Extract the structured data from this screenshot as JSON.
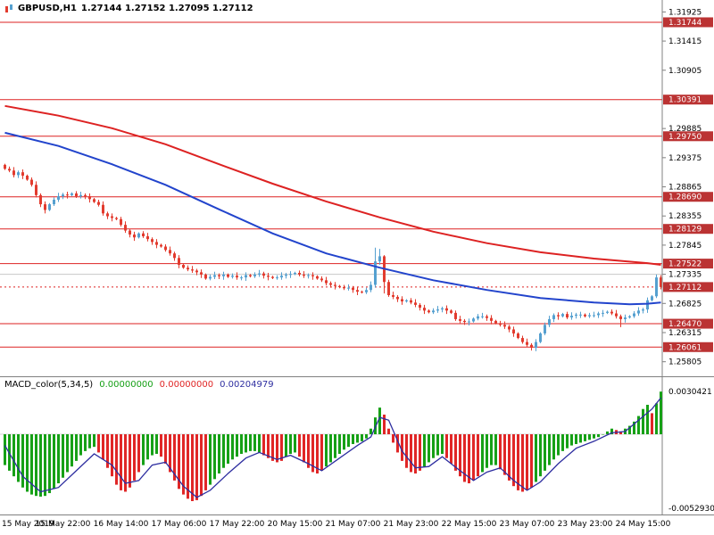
{
  "header": {
    "symbol": "GBPUSD,H1",
    "ohlc": "1.27144 1.27152 1.27095 1.27112",
    "icon": "candlestick-icon"
  },
  "macd_header": {
    "label": "MACD_color(5,34,5)",
    "values": [
      "0.00000000",
      "0.00000000",
      "0.00204979"
    ]
  },
  "colors": {
    "candle_up": "#55a0d0",
    "candle_down": "#e23b2e",
    "ma_slow": "#dd2222",
    "ma_fast": "#2244cc",
    "level_line": "#dd2222",
    "level_box": "#bb3333",
    "hist_up": "#16a016",
    "hist_down": "#e02626",
    "signal": "#2e2ea0",
    "grid": "#c8c8c8",
    "frame": "#808080"
  },
  "chart_data": [
    {
      "type": "candlestick",
      "title": "GBPUSD,H1",
      "symbol": "GBPUSD",
      "timeframe": "H1",
      "current_price": 1.27112,
      "ylim": [
        1.255,
        1.3204
      ],
      "x_labels": [
        "15 May 2019",
        "15 May 22:00",
        "16 May 14:00",
        "17 May 06:00",
        "17 May 22:00",
        "20 May 15:00",
        "21 May 07:00",
        "21 May 23:00",
        "22 May 15:00",
        "23 May 07:00",
        "23 May 23:00",
        "24 May 15:00"
      ],
      "x_label_indices": [
        0,
        13,
        26,
        39,
        52,
        65,
        78,
        91,
        104,
        117,
        130,
        143
      ],
      "y_axis_ticks": [
        1.31925,
        1.31415,
        1.30905,
        1.29885,
        1.29375,
        1.28865,
        1.28355,
        1.27845,
        1.27335,
        1.26825,
        1.26315,
        1.25805
      ],
      "levels": [
        1.31744,
        1.30391,
        1.2975,
        1.2869,
        1.28129,
        1.27522,
        1.2647,
        1.26061
      ],
      "gray_line": 1.27335,
      "first_open": 1.2925,
      "candles_close": [
        1.2918,
        1.2915,
        1.2907,
        1.2912,
        1.2906,
        1.2899,
        1.289,
        1.2872,
        1.2856,
        1.2846,
        1.2856,
        1.2864,
        1.287,
        1.2873,
        1.2872,
        1.2875,
        1.287,
        1.2872,
        1.287,
        1.2865,
        1.286,
        1.2855,
        1.284,
        1.2835,
        1.2832,
        1.283,
        1.282,
        1.281,
        1.2803,
        1.2798,
        1.2805,
        1.28,
        1.2795,
        1.279,
        1.2785,
        1.2782,
        1.2776,
        1.277,
        1.2762,
        1.275,
        1.2745,
        1.2742,
        1.274,
        1.2737,
        1.2733,
        1.2726,
        1.2729,
        1.2732,
        1.273,
        1.2733,
        1.2729,
        1.2731,
        1.2728,
        1.2728,
        1.2732,
        1.273,
        1.2733,
        1.2735,
        1.2731,
        1.2729,
        1.2727,
        1.2728,
        1.2731,
        1.2733,
        1.2734,
        1.2736,
        1.2733,
        1.2731,
        1.2732,
        1.273,
        1.2726,
        1.2723,
        1.2718,
        1.2715,
        1.2713,
        1.2711,
        1.2709,
        1.271,
        1.2706,
        1.2703,
        1.2702,
        1.2706,
        1.2715,
        1.2756,
        1.2765,
        1.272,
        1.2697,
        1.2694,
        1.269,
        1.2686,
        1.2688,
        1.2684,
        1.268,
        1.2675,
        1.267,
        1.2667,
        1.267,
        1.2672,
        1.2674,
        1.267,
        1.2666,
        1.2655,
        1.2652,
        1.265,
        1.2651,
        1.2656,
        1.266,
        1.266,
        1.2657,
        1.2652,
        1.2648,
        1.2645,
        1.2642,
        1.2637,
        1.263,
        1.2622,
        1.2615,
        1.261,
        1.2605,
        1.2615,
        1.263,
        1.2645,
        1.2655,
        1.2662,
        1.266,
        1.2664,
        1.2658,
        1.2661,
        1.2663,
        1.2663,
        1.266,
        1.2662,
        1.2662,
        1.2665,
        1.2666,
        1.2668,
        1.2665,
        1.266,
        1.2655,
        1.2658,
        1.266,
        1.2665,
        1.267,
        1.2672,
        1.2688,
        1.2695,
        1.2728,
        1.27112
      ],
      "wick_overrides": {
        "83": {
          "h": 1.278
        },
        "84": {
          "h": 1.2778
        },
        "85": {
          "l": 1.27
        },
        "118": {
          "l": 1.26
        },
        "138": {
          "l": 1.2641
        },
        "146": {
          "h": 1.2733
        },
        "147": {
          "h": 1.2732
        }
      },
      "ma_slow": [
        [
          0,
          1.3028
        ],
        [
          12,
          1.3011
        ],
        [
          24,
          1.2989
        ],
        [
          36,
          1.2961
        ],
        [
          48,
          1.2926
        ],
        [
          60,
          1.2892
        ],
        [
          72,
          1.2861
        ],
        [
          84,
          1.2833
        ],
        [
          96,
          1.2808
        ],
        [
          108,
          1.2788
        ],
        [
          120,
          1.2772
        ],
        [
          132,
          1.2761
        ],
        [
          144,
          1.2753
        ],
        [
          147,
          1.275
        ]
      ],
      "ma_fast": [
        [
          0,
          1.2981
        ],
        [
          12,
          1.2958
        ],
        [
          24,
          1.2926
        ],
        [
          36,
          1.289
        ],
        [
          48,
          1.2847
        ],
        [
          60,
          1.2805
        ],
        [
          72,
          1.277
        ],
        [
          84,
          1.2745
        ],
        [
          96,
          1.2723
        ],
        [
          108,
          1.2706
        ],
        [
          120,
          1.2692
        ],
        [
          132,
          1.2684
        ],
        [
          140,
          1.2681
        ],
        [
          144,
          1.2682
        ],
        [
          147,
          1.2684
        ]
      ]
    },
    {
      "type": "bar",
      "title": "MACD_color(5,34,5)",
      "ylim": [
        -0.005293,
        0.0030421
      ],
      "axis_labels": [
        "0.0030421",
        "-0.0052930"
      ],
      "histogram": [
        -0.0022,
        -0.0026,
        -0.003,
        -0.0034,
        -0.0038,
        -0.0041,
        -0.0043,
        -0.0044,
        -0.00445,
        -0.0044,
        -0.0042,
        -0.0039,
        -0.0035,
        -0.0031,
        -0.0027,
        -0.0023,
        -0.0019,
        -0.0015,
        -0.0012,
        -0.001,
        -0.0009,
        -0.0013,
        -0.0018,
        -0.0024,
        -0.003,
        -0.0036,
        -0.004,
        -0.0041,
        -0.0038,
        -0.0033,
        -0.0027,
        -0.0022,
        -0.0018,
        -0.0015,
        -0.0014,
        -0.0016,
        -0.0021,
        -0.0027,
        -0.0033,
        -0.0039,
        -0.0043,
        -0.0046,
        -0.00477,
        -0.0047,
        -0.0044,
        -0.004,
        -0.0036,
        -0.0032,
        -0.0028,
        -0.0024,
        -0.0021,
        -0.0018,
        -0.0016,
        -0.0014,
        -0.0013,
        -0.0012,
        -0.0012,
        -0.0013,
        -0.0015,
        -0.0017,
        -0.0019,
        -0.002,
        -0.0019,
        -0.0016,
        -0.0014,
        -0.0013,
        -0.0016,
        -0.002,
        -0.0024,
        -0.0027,
        -0.0028,
        -0.0026,
        -0.0023,
        -0.002,
        -0.0017,
        -0.0014,
        -0.0011,
        -0.0009,
        -0.0007,
        -0.0006,
        -0.0005,
        -0.0003,
        0.0004,
        0.0012,
        0.0019,
        0.0014,
        0.0004,
        -0.0006,
        -0.0013,
        -0.0019,
        -0.0024,
        -0.0027,
        -0.0028,
        -0.0026,
        -0.0023,
        -0.002,
        -0.0017,
        -0.0015,
        -0.0014,
        -0.0017,
        -0.0021,
        -0.0026,
        -0.003,
        -0.0034,
        -0.0035,
        -0.0033,
        -0.003,
        -0.0027,
        -0.0024,
        -0.0022,
        -0.0022,
        -0.0025,
        -0.0029,
        -0.0033,
        -0.0037,
        -0.004,
        -0.0041,
        -0.004,
        -0.0038,
        -0.0034,
        -0.003,
        -0.0026,
        -0.0022,
        -0.0018,
        -0.0015,
        -0.0012,
        -0.001,
        -0.0008,
        -0.0007,
        -0.0006,
        -0.0005,
        -0.0004,
        -0.0003,
        -0.0002,
        0.0,
        0.0002,
        0.0004,
        0.0003,
        0.0002,
        0.0004,
        0.0006,
        0.0009,
        0.0013,
        0.0018,
        0.0021,
        0.0015,
        0.0022,
        0.0030421
      ],
      "bar_colors": "gggggggggggggggggggggrrrrrrrrrrggggrrrrrrrrrrrggggggggggggrrrrrgggrrrrrrgggggggggggggrrrrrrrrrgggggrrrrrrrrggggrrrrrrrrggggggggggggggggggrrggggggrgg",
      "signal_line": [
        [
          0,
          -0.0008
        ],
        [
          4,
          -0.003
        ],
        [
          8,
          -0.0041
        ],
        [
          12,
          -0.0038
        ],
        [
          16,
          -0.0026
        ],
        [
          20,
          -0.0014
        ],
        [
          24,
          -0.0022
        ],
        [
          27,
          -0.0035
        ],
        [
          30,
          -0.0033
        ],
        [
          33,
          -0.0022
        ],
        [
          36,
          -0.002
        ],
        [
          40,
          -0.0037
        ],
        [
          43,
          -0.0045
        ],
        [
          46,
          -0.004
        ],
        [
          50,
          -0.0028
        ],
        [
          54,
          -0.0017
        ],
        [
          57,
          -0.0013
        ],
        [
          61,
          -0.0018
        ],
        [
          64,
          -0.0015
        ],
        [
          68,
          -0.0021
        ],
        [
          71,
          -0.0026
        ],
        [
          75,
          -0.0017
        ],
        [
          79,
          -0.0008
        ],
        [
          82,
          -0.0002
        ],
        [
          84,
          0.0012
        ],
        [
          86,
          0.001
        ],
        [
          89,
          -0.0012
        ],
        [
          92,
          -0.0024
        ],
        [
          95,
          -0.0023
        ],
        [
          98,
          -0.0016
        ],
        [
          102,
          -0.0026
        ],
        [
          105,
          -0.0033
        ],
        [
          108,
          -0.0027
        ],
        [
          111,
          -0.0024
        ],
        [
          114,
          -0.0033
        ],
        [
          117,
          -0.004
        ],
        [
          120,
          -0.0034
        ],
        [
          124,
          -0.0021
        ],
        [
          128,
          -0.001
        ],
        [
          132,
          -0.0005
        ],
        [
          136,
          0.0001
        ],
        [
          139,
          0.0002
        ],
        [
          142,
          0.001
        ],
        [
          145,
          0.0018
        ],
        [
          147,
          0.0026
        ]
      ]
    }
  ]
}
